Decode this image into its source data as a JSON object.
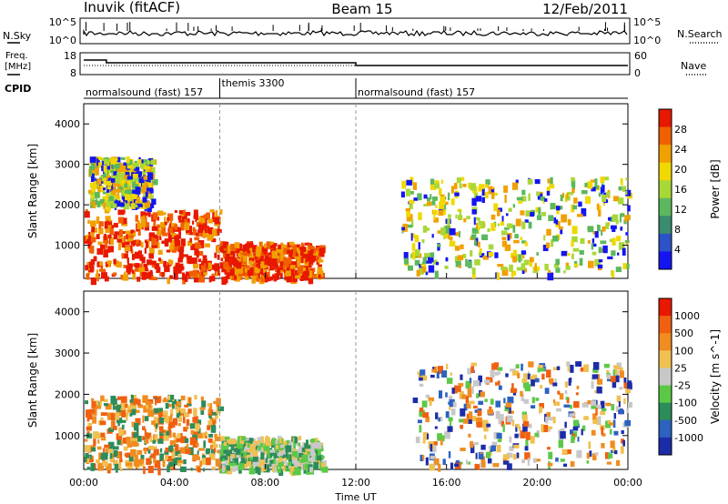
{
  "header": {
    "station": "Inuvik (fitACF)",
    "beam": "Beam 15",
    "date": "12/Feb/2011"
  },
  "strip_labels": {
    "nsky": "N.Sky",
    "nsearch": "N.Search",
    "freq": "Freq.",
    "freq_unit": "[MHz]",
    "nave": "Nave",
    "cpid": "CPID",
    "nsky_ticks": [
      "10^5",
      "10^0"
    ],
    "nsearch_ticks": [
      "10^5",
      "10^0"
    ],
    "freq_ticks": [
      "18",
      "8"
    ],
    "nave_ticks": [
      "60",
      "0"
    ]
  },
  "cpid_segments": [
    {
      "label": "normalsound (fast) 157",
      "start_hour": 0,
      "end_hour": 6
    },
    {
      "label": "themis 3300",
      "start_hour": 6,
      "end_hour": 12
    },
    {
      "label": "normalsound (fast) 157",
      "start_hour": 12,
      "end_hour": 24
    }
  ],
  "chart_data": [
    {
      "type": "heatmap",
      "title": "Power",
      "xlabel": "",
      "ylabel": "Slant Range [km]",
      "xlim": [
        0,
        24
      ],
      "ylim": [
        180,
        4500
      ],
      "yticks": [
        1000,
        2000,
        3000,
        4000
      ],
      "colorbar": {
        "label": "Power [dB]",
        "ticks": [
          "28",
          "24",
          "20",
          "16",
          "12",
          "8",
          "4"
        ],
        "colors": [
          "#1414f0",
          "#2c52c8",
          "#3a8c6e",
          "#5cb85c",
          "#a8d838",
          "#f0d800",
          "#f0a000",
          "#f06000",
          "#e81800"
        ]
      },
      "regions": [
        {
          "x0": 0.0,
          "x1": 6.0,
          "y0": 200,
          "y1": 1900,
          "level": "high"
        },
        {
          "x0": 0.2,
          "x1": 3.0,
          "y0": 2000,
          "y1": 3200,
          "level": "medium"
        },
        {
          "x0": 6.0,
          "x1": 10.5,
          "y0": 200,
          "y1": 1100,
          "level": "high"
        },
        {
          "x0": 14.0,
          "x1": 24.0,
          "y0": 300,
          "y1": 2700,
          "level": "medium"
        }
      ]
    },
    {
      "type": "heatmap",
      "title": "Velocity",
      "xlabel": "Time UT",
      "ylabel": "Slant Range [km]",
      "xlim": [
        0,
        24
      ],
      "ylim": [
        180,
        4500
      ],
      "yticks": [
        1000,
        2000,
        3000,
        4000
      ],
      "xticks": [
        "00:00",
        "04:00",
        "08:00",
        "12:00",
        "16:00",
        "20:00",
        "00:00"
      ],
      "colorbar": {
        "label": "Velocity [m s^-1]",
        "ticks": [
          "1000",
          "500",
          "100",
          "25",
          "-25",
          "-100",
          "-500",
          "-1000"
        ],
        "colors": [
          "#1c2ca8",
          "#2c62c0",
          "#2c8c5a",
          "#5cc848",
          "#c8c8c8",
          "#f0c050",
          "#f08c20",
          "#f06010",
          "#e81800"
        ]
      },
      "regions": [
        {
          "x0": 0.0,
          "x1": 6.0,
          "y0": 200,
          "y1": 2000,
          "level": "orange"
        },
        {
          "x0": 6.0,
          "x1": 10.5,
          "y0": 200,
          "y1": 1000,
          "level": "green-grey"
        },
        {
          "x0": 14.5,
          "x1": 24.0,
          "y0": 300,
          "y1": 2800,
          "level": "mixed"
        }
      ]
    }
  ]
}
